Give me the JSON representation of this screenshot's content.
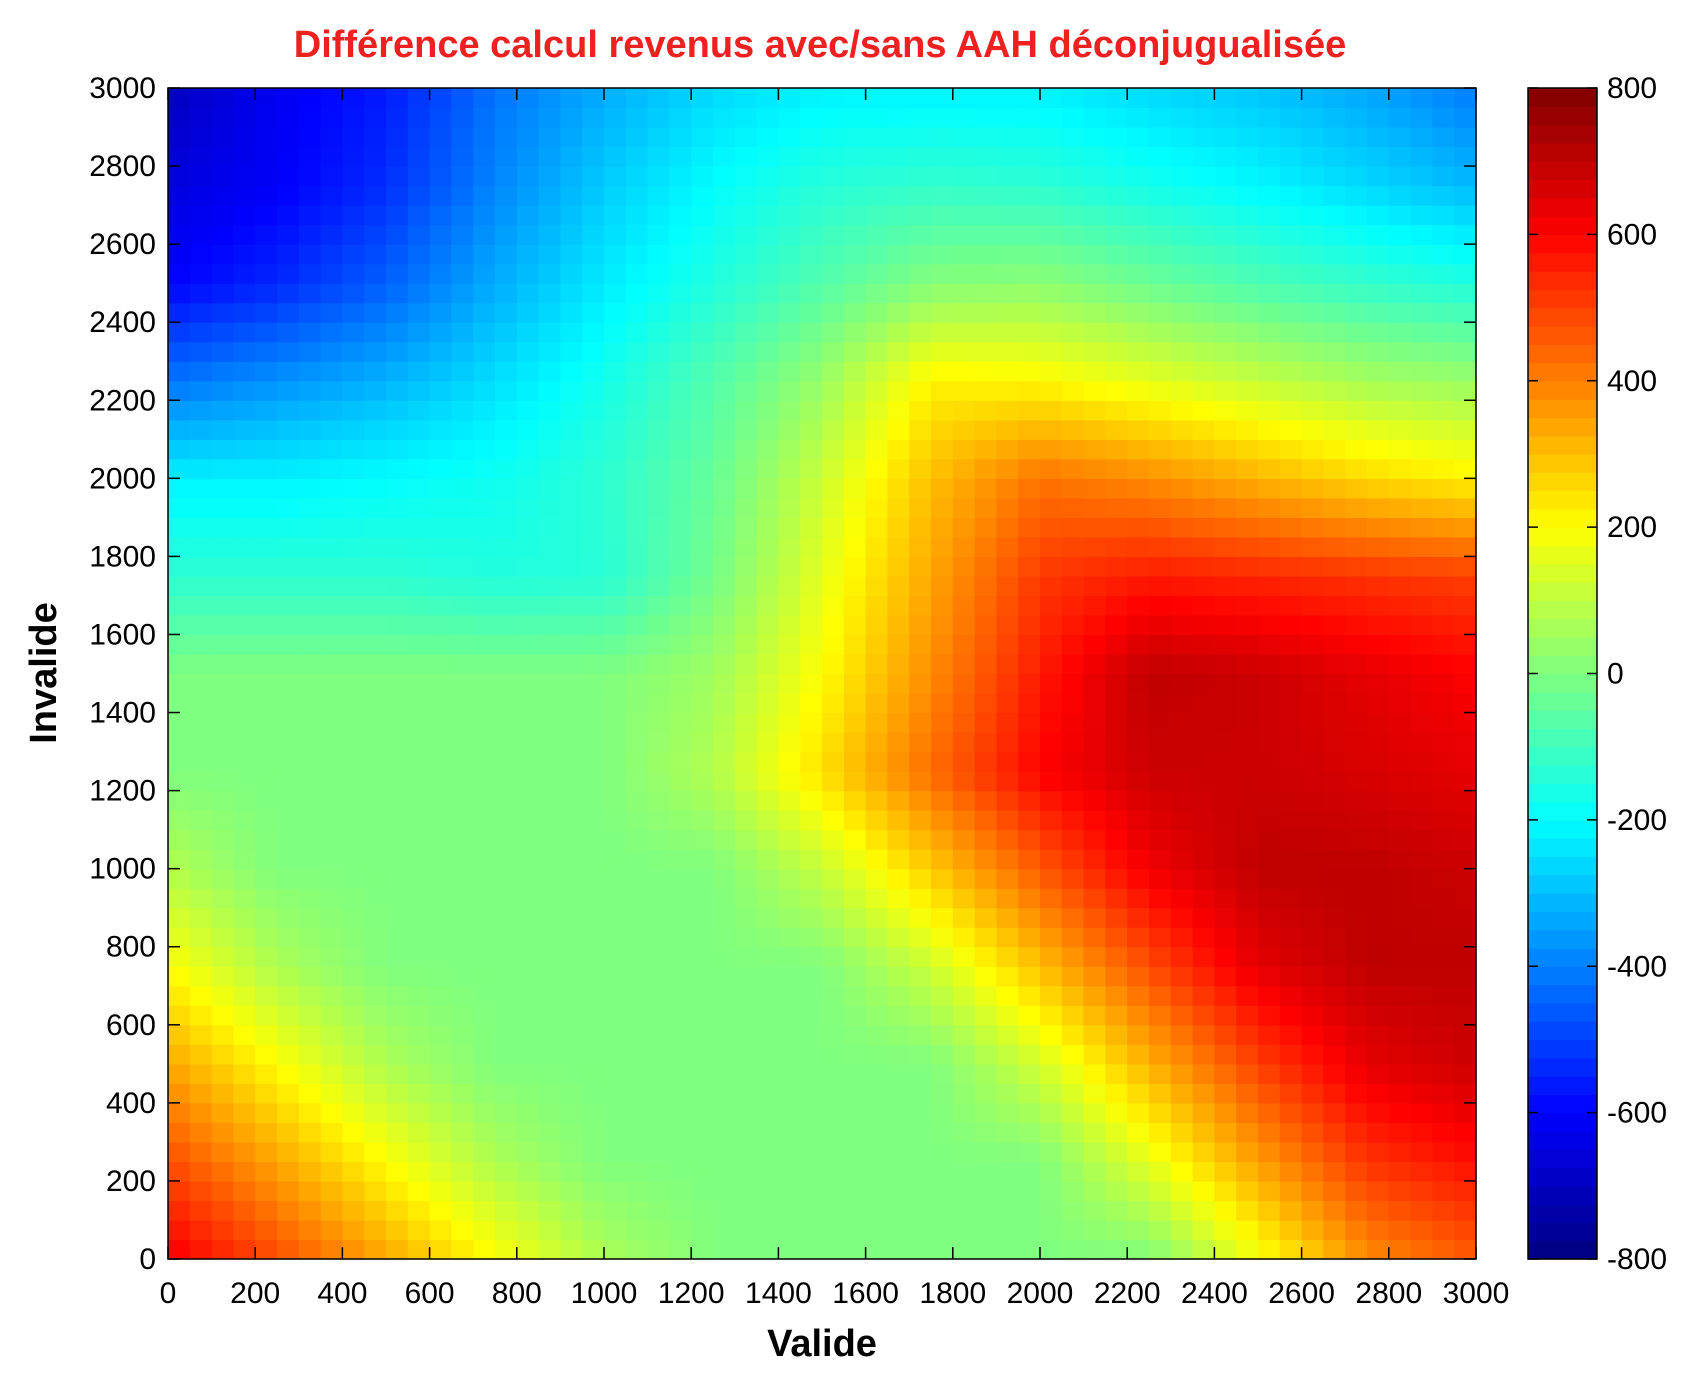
{
  "chart_data": {
    "type": "heatmap",
    "title": "Différence calcul revenus avec/sans AAH déconjugualisée",
    "xlabel": "Valide",
    "ylabel": "Invalide",
    "xlim": [
      0,
      3000
    ],
    "ylim": [
      0,
      3000
    ],
    "xticks": [
      "0",
      "200",
      "400",
      "600",
      "800",
      "1000",
      "1200",
      "1400",
      "1600",
      "1800",
      "2000",
      "2200",
      "2400",
      "2600",
      "2800",
      "3000"
    ],
    "yticks": [
      "0",
      "200",
      "400",
      "600",
      "800",
      "1000",
      "1200",
      "1400",
      "1600",
      "1800",
      "2000",
      "2200",
      "2400",
      "2600",
      "2800",
      "3000"
    ],
    "colorbar": {
      "min": -800,
      "max": 800,
      "ticks": [
        "-800",
        "-600",
        "-400",
        "-200",
        "0",
        "200",
        "400",
        "600",
        "800"
      ],
      "colormap": "jet"
    },
    "grid_step": 250,
    "x": [
      0,
      250,
      500,
      750,
      1000,
      1250,
      1500,
      1750,
      2000,
      2250,
      2500,
      2750,
      3000
    ],
    "y": [
      0,
      250,
      500,
      750,
      1000,
      1250,
      1500,
      1750,
      2000,
      2250,
      2500,
      2750,
      3000
    ],
    "z": [
      [
        620,
        480,
        340,
        200,
        70,
        0,
        0,
        0,
        0,
        0,
        180,
        380,
        460
      ],
      [
        480,
        340,
        200,
        70,
        0,
        0,
        0,
        0,
        0,
        160,
        350,
        520,
        580
      ],
      [
        340,
        200,
        70,
        0,
        0,
        0,
        0,
        0,
        130,
        320,
        500,
        640,
        680
      ],
      [
        200,
        70,
        0,
        0,
        0,
        0,
        0,
        120,
        300,
        480,
        640,
        700,
        700
      ],
      [
        80,
        0,
        0,
        0,
        0,
        0,
        110,
        280,
        460,
        620,
        700,
        700,
        680
      ],
      [
        0,
        0,
        0,
        0,
        0,
        80,
        250,
        430,
        600,
        680,
        680,
        660,
        640
      ],
      [
        0,
        0,
        0,
        0,
        0,
        50,
        200,
        380,
        560,
        700,
        680,
        640,
        600
      ],
      [
        -130,
        -130,
        -130,
        -150,
        -140,
        -20,
        160,
        340,
        510,
        560,
        540,
        520,
        500
      ],
      [
        -220,
        -220,
        -200,
        -180,
        -130,
        -40,
        120,
        300,
        420,
        380,
        320,
        260,
        220
      ],
      [
        -420,
        -370,
        -320,
        -250,
        -170,
        -70,
        40,
        220,
        210,
        160,
        110,
        60,
        40
      ],
      [
        -600,
        -540,
        -450,
        -330,
        -230,
        -150,
        -70,
        10,
        20,
        -30,
        -80,
        -120,
        -150
      ],
      [
        -650,
        -610,
        -530,
        -390,
        -280,
        -200,
        -140,
        -120,
        -130,
        -170,
        -210,
        -260,
        -310
      ],
      [
        -700,
        -620,
        -560,
        -420,
        -330,
        -260,
        -220,
        -220,
        -220,
        -260,
        -290,
        -340,
        -410
      ]
    ]
  }
}
